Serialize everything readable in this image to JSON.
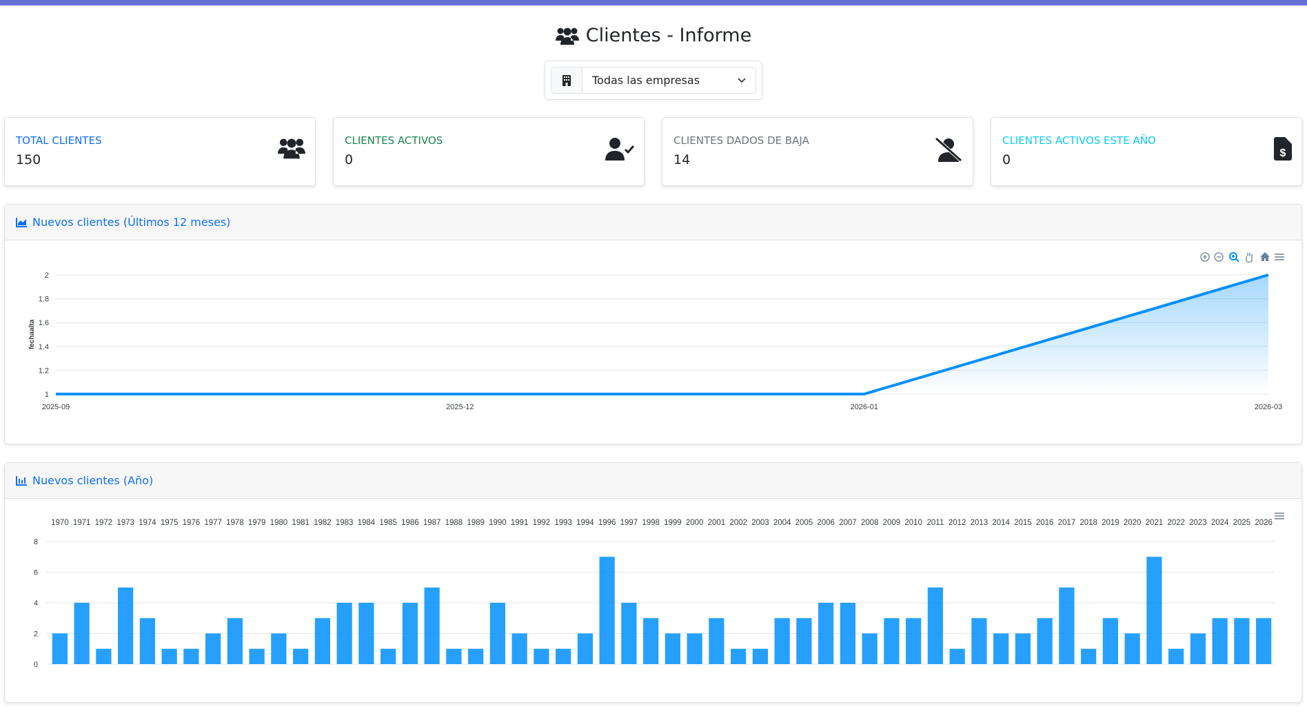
{
  "header": {
    "title": "Clientes - Informe",
    "title_icon": "users-icon"
  },
  "filter": {
    "selected": "Todas las empresas",
    "icon": "building-icon"
  },
  "cards": [
    {
      "label": "Total Clientes",
      "value": "150",
      "color": "#0d6efd",
      "icon": "users-icon"
    },
    {
      "label": "Clientes Activos",
      "value": "0",
      "color": "#198754",
      "icon": "user-check-icon"
    },
    {
      "label": "Clientes dados de baja",
      "value": "14",
      "color": "#6c757d",
      "icon": "user-slash-icon"
    },
    {
      "label": "Clientes activos este año",
      "value": "0",
      "color": "#0dcaf0",
      "icon": "file-invoice-dollar-icon"
    }
  ],
  "panels": {
    "line_title": "Nuevos clientes (Últimos 12 meses)",
    "bar_title": "Nuevos clientes (Año)"
  },
  "chart_data": [
    {
      "type": "area",
      "title": "",
      "xlabel": "",
      "ylabel": "fechaalta",
      "categories": [
        "2025-09",
        "2025-12",
        "2026-01",
        "2026-03"
      ],
      "values": [
        1,
        1,
        1,
        2
      ],
      "ylim": [
        1,
        2
      ],
      "yticks": [
        "1",
        "1.2",
        "1.4",
        "1.6",
        "1.8",
        "2"
      ],
      "grid": true,
      "color": "#008ffb",
      "toolbar": [
        "zoom-in-icon",
        "zoom-out-icon",
        "zoom-select-icon",
        "pan-icon",
        "home-icon",
        "menu-icon"
      ]
    },
    {
      "type": "bar",
      "title": "",
      "xlabel": "",
      "ylabel": "",
      "categories": [
        "1970",
        "1971",
        "1972",
        "1973",
        "1974",
        "1975",
        "1976",
        "1977",
        "1978",
        "1979",
        "1980",
        "1981",
        "1982",
        "1983",
        "1984",
        "1985",
        "1986",
        "1987",
        "1988",
        "1989",
        "1990",
        "1991",
        "1992",
        "1993",
        "1994",
        "1996",
        "1997",
        "1998",
        "1999",
        "2000",
        "2001",
        "2002",
        "2003",
        "2004",
        "2005",
        "2006",
        "2007",
        "2008",
        "2009",
        "2010",
        "2011",
        "2012",
        "2013",
        "2014",
        "2015",
        "2016",
        "2017",
        "2018",
        "2019",
        "2020",
        "2021",
        "2022",
        "2023",
        "2024",
        "2025",
        "2026"
      ],
      "values": [
        2,
        4,
        1,
        5,
        3,
        1,
        1,
        2,
        3,
        1,
        2,
        1,
        3,
        4,
        4,
        1,
        4,
        5,
        1,
        1,
        4,
        2,
        1,
        1,
        2,
        7,
        4,
        3,
        2,
        2,
        3,
        1,
        1,
        3,
        3,
        4,
        4,
        2,
        3,
        3,
        5,
        1,
        3,
        2,
        2,
        3,
        5,
        1,
        3,
        2,
        7,
        1,
        2,
        3,
        3,
        3
      ],
      "ylim": [
        0,
        8
      ],
      "yticks": [
        "0",
        "2",
        "4",
        "6",
        "8"
      ],
      "grid": true,
      "x_axis_position": "top",
      "color": "#008ffb"
    }
  ]
}
